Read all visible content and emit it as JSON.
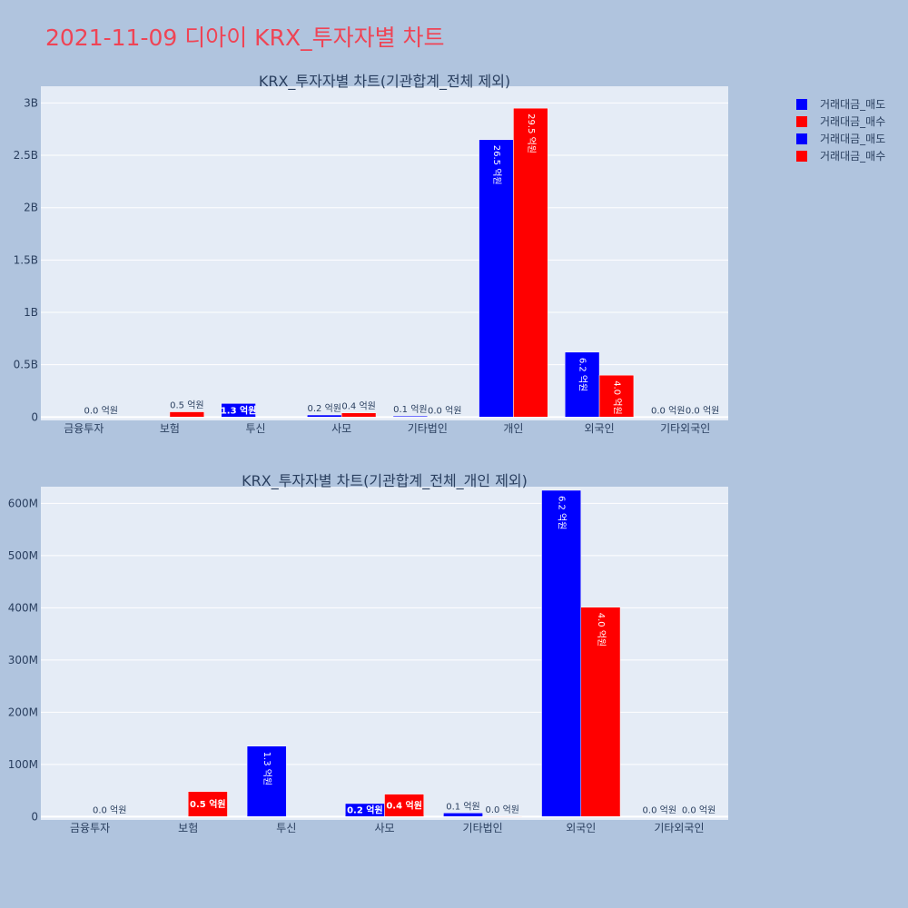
{
  "page": {
    "title": "2021-11-09 디아이 KRX_투자자별 차트",
    "title_color": "#ef4455",
    "background": "#b0c4de",
    "plot_background": "#e5ecf6"
  },
  "legend": {
    "placement": "top-right",
    "items": [
      {
        "label": "거래대금_매도",
        "color": "#0000ff"
      },
      {
        "label": "거래대금_매수",
        "color": "#ff0000"
      },
      {
        "label": "거래대금_매도",
        "color": "#0000ff"
      },
      {
        "label": "거래대금_매수",
        "color": "#ff0000"
      }
    ]
  },
  "chart_data": [
    {
      "type": "bar",
      "title": "KRX_투자자별 차트(기관합계_전체 제외)",
      "categories": [
        "금융투자",
        "보험",
        "투신",
        "사모",
        "기타법인",
        "개인",
        "외국인",
        "기타외국인"
      ],
      "series": [
        {
          "name": "거래대금_매도",
          "color": "#0000ff",
          "values": [
            0,
            0,
            130000000,
            20000000,
            10000000,
            2650000000,
            620000000,
            0
          ],
          "labels": [
            "",
            "",
            "1.3 억원",
            "0.2 억원",
            "0.1 억원",
            "26.5 억원",
            "6.2 억원",
            "0.0 억원"
          ]
        },
        {
          "name": "거래대금_매수",
          "color": "#ff0000",
          "values": [
            0,
            50000000,
            0,
            40000000,
            0,
            2950000000,
            400000000,
            0
          ],
          "labels": [
            "0.0 억원",
            "0.5 억원",
            "",
            "0.4 억원",
            "0.0 억원",
            "29.5 억원",
            "4.0 억원",
            "0.0 억원"
          ]
        }
      ],
      "ylim": [
        0,
        3000000000
      ],
      "yticks": [
        0,
        500000000,
        1000000000,
        1500000000,
        2000000000,
        2500000000,
        3000000000
      ],
      "ytick_labels": [
        "0",
        "0.5B",
        "1B",
        "1.5B",
        "2B",
        "2.5B",
        "3B"
      ],
      "grid": true
    },
    {
      "type": "bar",
      "title": "KRX_투자자별 차트(기관합계_전체_개인 제외)",
      "categories": [
        "금융투자",
        "보험",
        "투신",
        "사모",
        "기타법인",
        "외국인",
        "기타외국인"
      ],
      "series": [
        {
          "name": "거래대금_매도",
          "color": "#0000ff",
          "values": [
            0,
            0,
            135000000,
            25000000,
            7000000,
            625000000,
            0
          ],
          "labels": [
            "",
            "",
            "1.3 억원",
            "0.2 억원",
            "0.1 억원",
            "6.2 억원",
            "0.0 억원"
          ]
        },
        {
          "name": "거래대금_매수",
          "color": "#ff0000",
          "values": [
            0,
            48000000,
            0,
            43000000,
            1000000,
            401000000,
            0
          ],
          "labels": [
            "0.0 억원",
            "0.5 억원",
            "",
            "0.4 억원",
            "0.0 억원",
            "4.0 억원",
            "0.0 억원"
          ]
        }
      ],
      "ylim": [
        0,
        600000000
      ],
      "yticks": [
        0,
        100000000,
        200000000,
        300000000,
        400000000,
        500000000,
        600000000
      ],
      "ytick_labels": [
        "0",
        "100M",
        "200M",
        "300M",
        "400M",
        "500M",
        "600M"
      ],
      "grid": true
    }
  ]
}
